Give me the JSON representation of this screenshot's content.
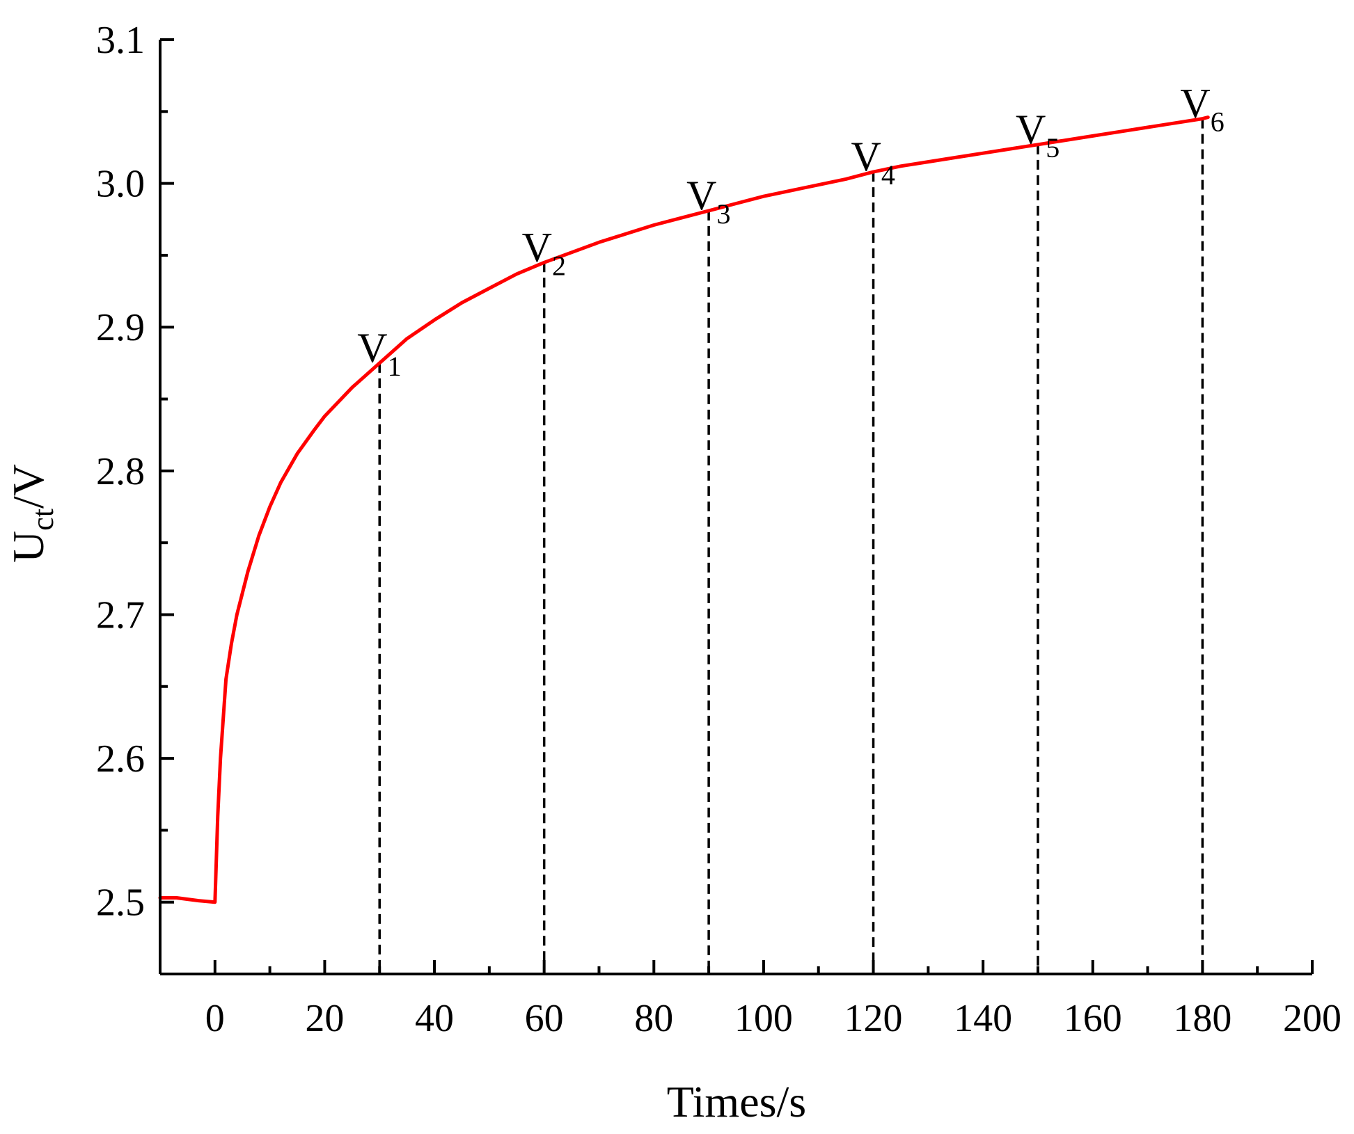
{
  "chart_data": {
    "type": "line",
    "title": "",
    "xlabel": "Times/s",
    "ylabel": {
      "main": "U",
      "sub": "ct",
      "suffix": "/V"
    },
    "xlim": [
      -10,
      200
    ],
    "ylim": [
      2.45,
      3.1
    ],
    "x_ticks": [
      0,
      20,
      40,
      60,
      80,
      100,
      120,
      140,
      160,
      180,
      200
    ],
    "x_tick_labels": [
      "0",
      "20",
      "40",
      "60",
      "80",
      "100",
      "120",
      "140",
      "160",
      "180",
      "200"
    ],
    "y_ticks": [
      2.5,
      2.6,
      2.7,
      2.8,
      2.9,
      3.0,
      3.1
    ],
    "y_tick_labels": [
      "2.5",
      "2.6",
      "2.7",
      "2.8",
      "2.9",
      "3.0",
      "3.1"
    ],
    "grid": false,
    "series": [
      {
        "color": "#ff0000",
        "x": [
          -10,
          -7,
          -3,
          0,
          0.5,
          1,
          2,
          3,
          4,
          5,
          6,
          8,
          10,
          12,
          15,
          18,
          20,
          25,
          30,
          35,
          40,
          45,
          50,
          55,
          60,
          65,
          70,
          75,
          80,
          85,
          90,
          95,
          100,
          105,
          110,
          115,
          120,
          125,
          130,
          135,
          140,
          145,
          150,
          155,
          160,
          165,
          170,
          175,
          180,
          181
        ],
        "y": [
          2.503,
          2.503,
          2.501,
          2.5,
          2.56,
          2.6,
          2.655,
          2.68,
          2.7,
          2.715,
          2.73,
          2.755,
          2.775,
          2.792,
          2.812,
          2.828,
          2.838,
          2.858,
          2.875,
          2.892,
          2.905,
          2.917,
          2.927,
          2.937,
          2.945,
          2.952,
          2.959,
          2.965,
          2.971,
          2.976,
          2.981,
          2.986,
          2.991,
          2.995,
          2.999,
          3.003,
          3.008,
          3.012,
          3.015,
          3.018,
          3.021,
          3.024,
          3.027,
          3.03,
          3.033,
          3.036,
          3.039,
          3.042,
          3.045,
          3.046
        ]
      }
    ],
    "markers": [
      {
        "label": "V",
        "sub": "1",
        "x": 30,
        "y": 2.875
      },
      {
        "label": "V",
        "sub": "2",
        "x": 60,
        "y": 2.945
      },
      {
        "label": "V",
        "sub": "3",
        "x": 90,
        "y": 2.981
      },
      {
        "label": "V",
        "sub": "4",
        "x": 120,
        "y": 3.008
      },
      {
        "label": "V",
        "sub": "5",
        "x": 150,
        "y": 3.027
      },
      {
        "label": "V",
        "sub": "6",
        "x": 180,
        "y": 3.045
      }
    ]
  }
}
